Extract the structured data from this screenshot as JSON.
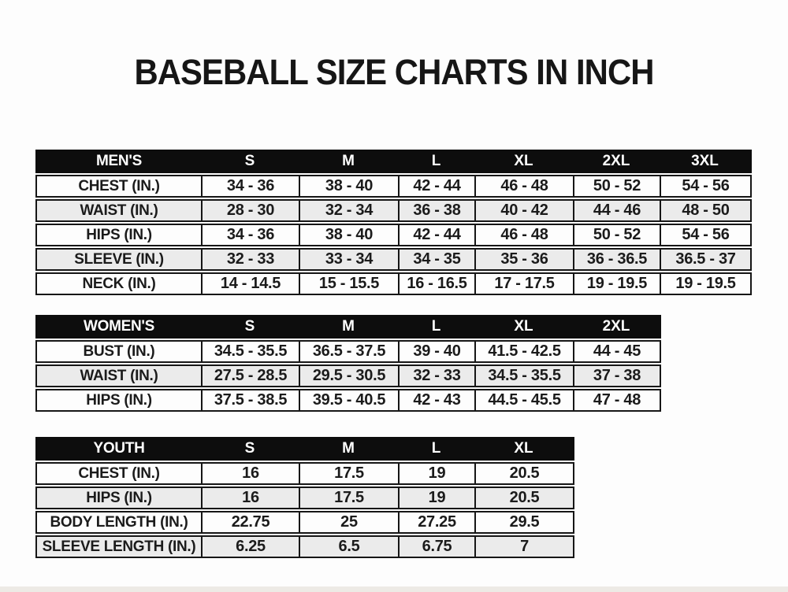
{
  "title": "BASEBALL SIZE CHARTS IN INCH",
  "colors": {
    "header_bg": "#0d0d0d",
    "header_text": "#ffffff",
    "row_bg": "#fdfdfd",
    "row_alt_bg": "#ebebeb",
    "border": "#161616",
    "text": "#1b1b1b"
  },
  "tables": [
    {
      "group_label": "MEN'S",
      "size_columns": [
        "S",
        "M",
        "L",
        "XL",
        "2XL",
        "3XL"
      ],
      "rows": [
        {
          "label": "CHEST (IN.)",
          "values": [
            "34 - 36",
            "38 - 40",
            "42 - 44",
            "46 - 48",
            "50 - 52",
            "54 - 56"
          ]
        },
        {
          "label": "WAIST (IN.)",
          "values": [
            "28 - 30",
            "32 - 34",
            "36 - 38",
            "40 - 42",
            "44 - 46",
            "48 - 50"
          ]
        },
        {
          "label": "HIPS (IN.)",
          "values": [
            "34 - 36",
            "38 - 40",
            "42 - 44",
            "46 - 48",
            "50 - 52",
            "54 - 56"
          ]
        },
        {
          "label": "SLEEVE (IN.)",
          "values": [
            "32 - 33",
            "33 - 34",
            "34 - 35",
            "35 - 36",
            "36 - 36.5",
            "36.5 - 37"
          ]
        },
        {
          "label": "NECK (IN.)",
          "values": [
            "14 - 14.5",
            "15 - 15.5",
            "16 - 16.5",
            "17 - 17.5",
            "19 - 19.5",
            "19 - 19.5"
          ]
        }
      ]
    },
    {
      "group_label": "WOMEN'S",
      "size_columns": [
        "S",
        "M",
        "L",
        "XL",
        "2XL"
      ],
      "rows": [
        {
          "label": "BUST (IN.)",
          "values": [
            "34.5 - 35.5",
            "36.5 - 37.5",
            "39 - 40",
            "41.5 - 42.5",
            "44 - 45"
          ]
        },
        {
          "label": "WAIST (IN.)",
          "values": [
            "27.5 - 28.5",
            "29.5 - 30.5",
            "32 - 33",
            "34.5 - 35.5",
            "37 - 38"
          ]
        },
        {
          "label": "HIPS (IN.)",
          "values": [
            "37.5 - 38.5",
            "39.5 - 40.5",
            "42 - 43",
            "44.5 - 45.5",
            "47 - 48"
          ]
        }
      ]
    },
    {
      "group_label": "YOUTH",
      "size_columns": [
        "S",
        "M",
        "L",
        "XL"
      ],
      "rows": [
        {
          "label": "CHEST (IN.)",
          "values": [
            "16",
            "17.5",
            "19",
            "20.5"
          ]
        },
        {
          "label": "HIPS (IN.)",
          "values": [
            "16",
            "17.5",
            "19",
            "20.5"
          ]
        },
        {
          "label": "BODY LENGTH (IN.)",
          "values": [
            "22.75",
            "25",
            "27.25",
            "29.5"
          ]
        },
        {
          "label": "SLEEVE LENGTH (IN.)",
          "values": [
            "6.25",
            "6.5",
            "6.75",
            "7"
          ]
        }
      ]
    }
  ]
}
